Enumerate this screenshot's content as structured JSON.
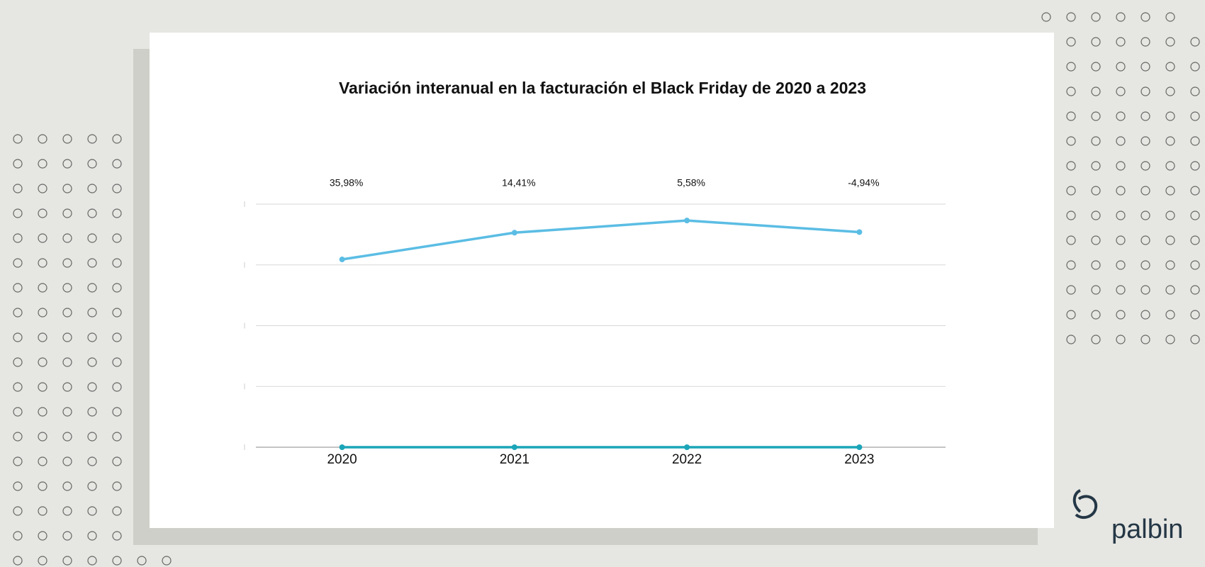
{
  "chart_data": {
    "type": "line",
    "title": "Variación interanual en la facturación el Black Friday de 2020 a 2023",
    "categories": [
      "2020",
      "2021",
      "2022",
      "2023"
    ],
    "annotations": [
      "35,98%",
      "14,41%",
      "5,58%",
      "-4,94%"
    ],
    "series": [
      {
        "color": "#5bbde4",
        "values": [
          3.09,
          3.53,
          3.73,
          3.54
        ]
      },
      {
        "color": "#1ba5b8",
        "values": [
          0,
          0,
          0,
          0
        ]
      }
    ],
    "ylim": [
      0,
      4
    ],
    "yticks": [
      0,
      1,
      2,
      3,
      4
    ],
    "grid": true
  },
  "logo": "palbin"
}
